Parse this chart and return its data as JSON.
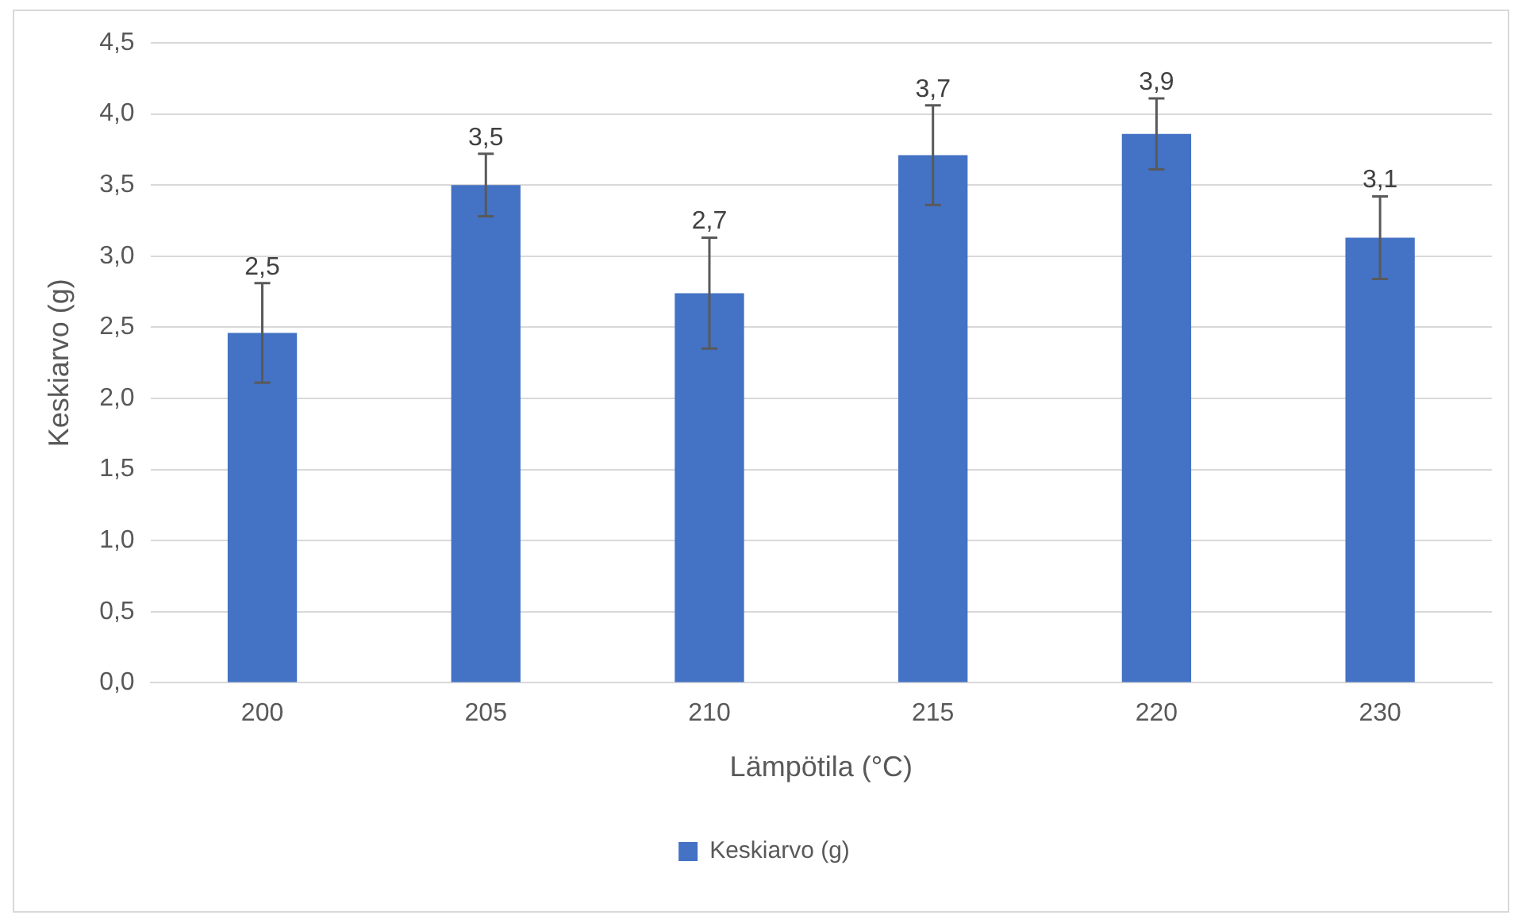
{
  "chart_data": {
    "type": "bar",
    "xlabel": "Lämpötila (°C)",
    "ylabel": "Keskiarvo (g)",
    "categories": [
      "200",
      "205",
      "210",
      "215",
      "220",
      "230"
    ],
    "series": [
      {
        "name": "Keskiarvo (g)",
        "color": "#4472c4",
        "values": [
          2.46,
          3.5,
          2.74,
          3.71,
          3.86,
          3.13
        ],
        "errors": [
          0.35,
          0.22,
          0.39,
          0.35,
          0.25,
          0.29
        ],
        "value_labels": [
          "2,5",
          "3,5",
          "2,7",
          "3,7",
          "3,9",
          "3,1"
        ]
      }
    ],
    "ylim": [
      0,
      4.5
    ],
    "yticks": [
      {
        "value": 0,
        "label": "0,0"
      },
      {
        "value": 0.5,
        "label": "0,5"
      },
      {
        "value": 1,
        "label": "1,0"
      },
      {
        "value": 1.5,
        "label": "1,5"
      },
      {
        "value": 2,
        "label": "2,0"
      },
      {
        "value": 2.5,
        "label": "2,5"
      },
      {
        "value": 3,
        "label": "3,0"
      },
      {
        "value": 3.5,
        "label": "3,5"
      },
      {
        "value": 4,
        "label": "4,0"
      },
      {
        "value": 4.5,
        "label": "4,5"
      }
    ],
    "grid": "y",
    "legend": "bottom"
  }
}
